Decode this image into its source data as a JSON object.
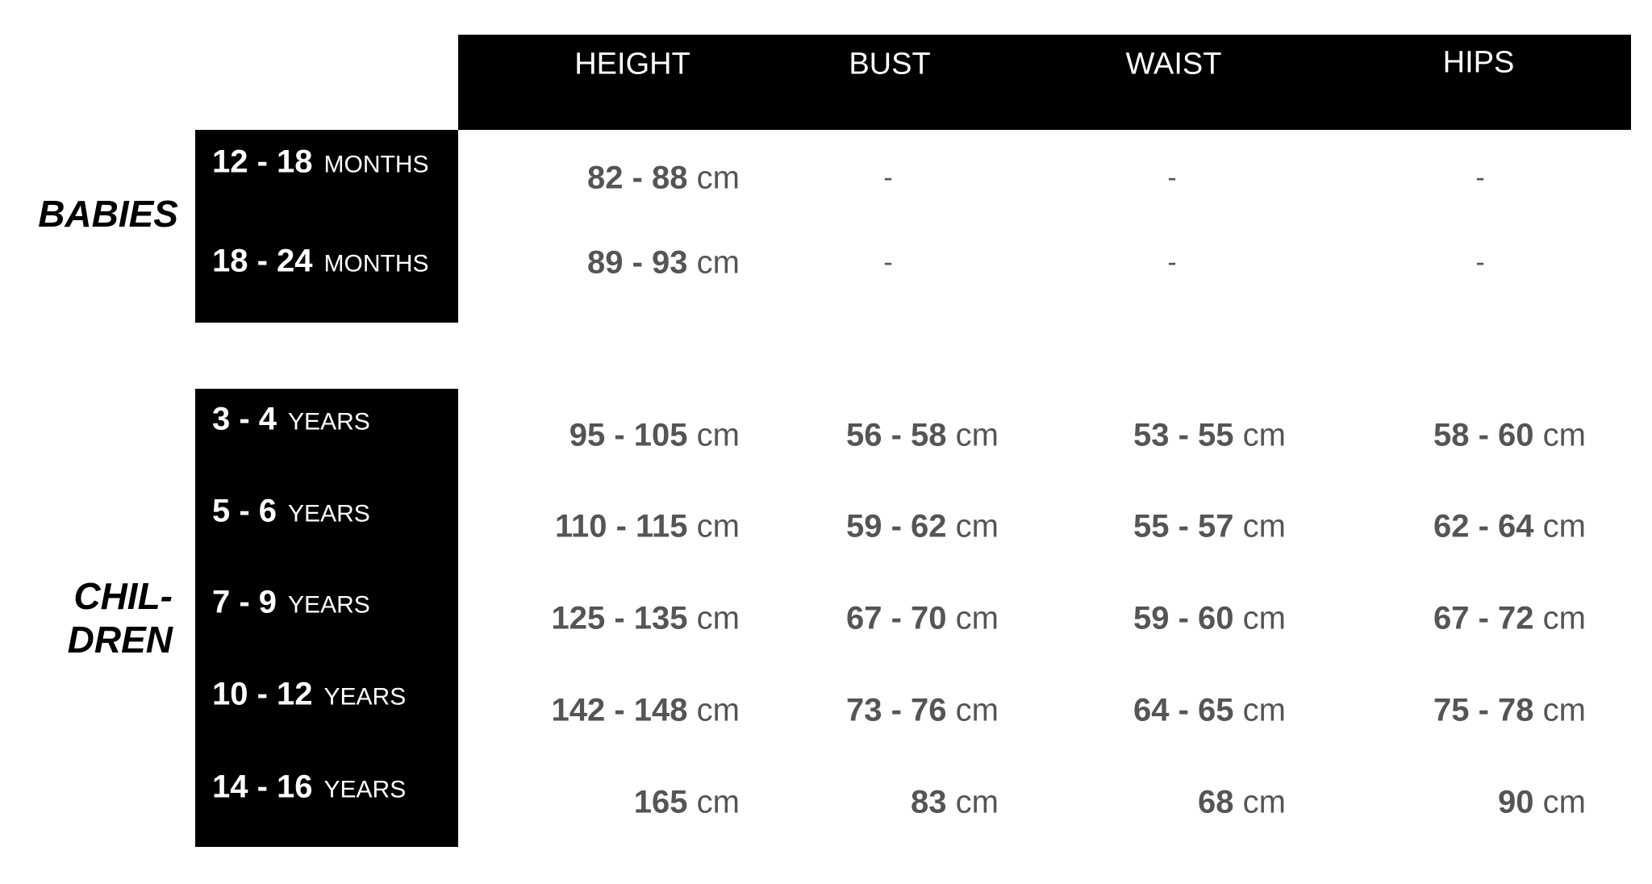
{
  "columns": [
    "HEIGHT",
    "BUST",
    "WAIST",
    "HIPS"
  ],
  "groups": {
    "babies": {
      "label": "BABIES",
      "rows": [
        {
          "range": "12 - 18",
          "unit": "MONTHS",
          "values": [
            {
              "n": "82 - 88",
              "u": "cm"
            },
            "-",
            "-",
            "-"
          ]
        },
        {
          "range": "18 - 24",
          "unit": "MONTHS",
          "values": [
            {
              "n": "89 - 93",
              "u": "cm"
            },
            "-",
            "-",
            "-"
          ]
        }
      ]
    },
    "children": {
      "label_line1": "CHIL-",
      "label_line2": "DREN",
      "rows": [
        {
          "range": "3 - 4",
          "unit": "YEARS",
          "values": [
            {
              "n": "95 - 105",
              "u": "cm"
            },
            {
              "n": "56 - 58",
              "u": "cm"
            },
            {
              "n": "53 - 55",
              "u": "cm"
            },
            {
              "n": "58 - 60",
              "u": "cm"
            }
          ]
        },
        {
          "range": "5 - 6",
          "unit": "YEARS",
          "values": [
            {
              "n": "110 - 115",
              "u": "cm"
            },
            {
              "n": "59 - 62",
              "u": "cm"
            },
            {
              "n": "55 - 57",
              "u": "cm"
            },
            {
              "n": "62 - 64",
              "u": "cm"
            }
          ]
        },
        {
          "range": "7 - 9",
          "unit": "YEARS",
          "values": [
            {
              "n": "125 - 135",
              "u": "cm"
            },
            {
              "n": "67 - 70",
              "u": "cm"
            },
            {
              "n": "59 - 60",
              "u": "cm"
            },
            {
              "n": "67 - 72",
              "u": "cm"
            }
          ]
        },
        {
          "range": "10 - 12",
          "unit": "YEARS",
          "values": [
            {
              "n": "142 - 148",
              "u": "cm"
            },
            {
              "n": "73 - 76",
              "u": "cm"
            },
            {
              "n": "64 - 65",
              "u": "cm"
            },
            {
              "n": "75 - 78",
              "u": "cm"
            }
          ]
        },
        {
          "range": "14 - 16",
          "unit": "YEARS",
          "values": [
            {
              "n": "165",
              "u": "cm"
            },
            {
              "n": "83",
              "u": "cm"
            },
            {
              "n": "68",
              "u": "cm"
            },
            {
              "n": "90",
              "u": "cm"
            }
          ]
        }
      ]
    }
  }
}
